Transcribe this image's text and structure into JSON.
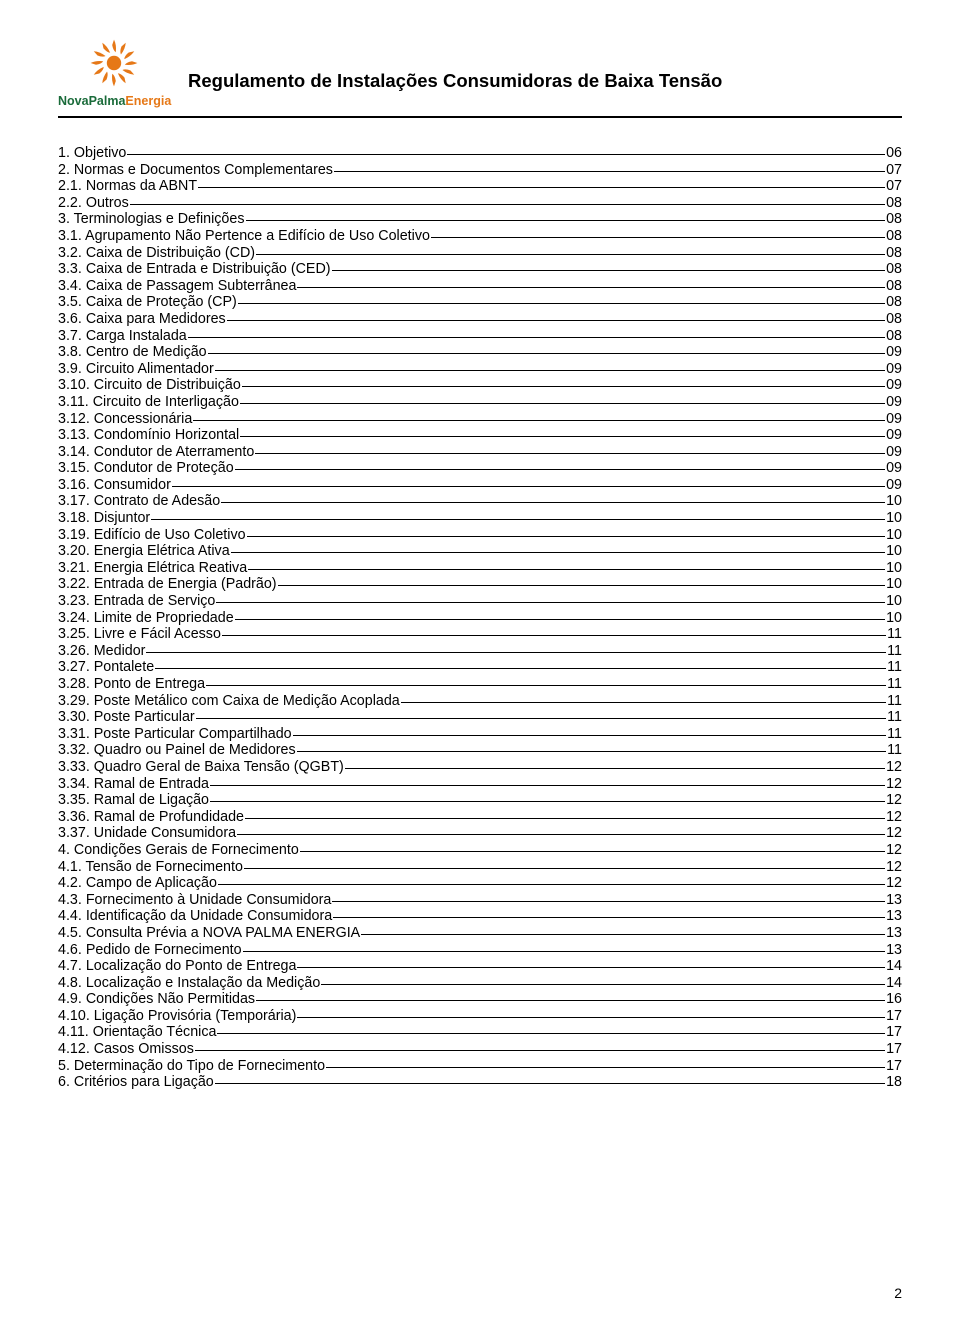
{
  "header": {
    "title": "Regulamento de Instalações Consumidoras de Baixa Tensão",
    "logo": {
      "brand_part1": "Nova",
      "brand_part2": "Palma",
      "brand_part3": "Energia",
      "sun_color": "#e67817",
      "green_color": "#1a6b3a"
    }
  },
  "page_number": "2",
  "toc": [
    {
      "label": "1. Objetivo",
      "page": "06"
    },
    {
      "label": "2. Normas e Documentos Complementares",
      "page": "07"
    },
    {
      "label": "2.1. Normas da ABNT",
      "page": "07"
    },
    {
      "label": "2.2. Outros",
      "page": "08"
    },
    {
      "label": "3. Terminologias e Definições",
      "page": "08"
    },
    {
      "label": "3.1. Agrupamento Não Pertence a Edifício de Uso Coletivo",
      "page": "08"
    },
    {
      "label": "3.2. Caixa de Distribuição (CD)",
      "page": "08"
    },
    {
      "label": "3.3. Caixa de Entrada e Distribuição (CED)",
      "page": "08"
    },
    {
      "label": "3.4. Caixa de Passagem Subterrânea",
      "page": "08"
    },
    {
      "label": "3.5. Caixa de Proteção (CP)",
      "page": "08"
    },
    {
      "label": "3.6. Caixa para Medidores",
      "page": "08"
    },
    {
      "label": "3.7. Carga Instalada",
      "page": "08"
    },
    {
      "label": "3.8. Centro de Medição",
      "page": "09"
    },
    {
      "label": "3.9. Circuito Alimentador",
      "page": "09"
    },
    {
      "label": "3.10. Circuito de Distribuição",
      "page": "09"
    },
    {
      "label": "3.11. Circuito de Interligação",
      "page": "09"
    },
    {
      "label": "3.12. Concessionária",
      "page": "09"
    },
    {
      "label": "3.13. Condomínio Horizontal",
      "page": "09"
    },
    {
      "label": "3.14. Condutor de Aterramento",
      "page": "09"
    },
    {
      "label": "3.15. Condutor de Proteção",
      "page": "09"
    },
    {
      "label": "3.16. Consumidor",
      "page": "09"
    },
    {
      "label": "3.17. Contrato de Adesão",
      "page": "10"
    },
    {
      "label": "3.18. Disjuntor",
      "page": "10"
    },
    {
      "label": "3.19. Edifício de Uso Coletivo",
      "page": "10"
    },
    {
      "label": "3.20. Energia Elétrica Ativa",
      "page": "10"
    },
    {
      "label": "3.21. Energia Elétrica Reativa",
      "page": "10"
    },
    {
      "label": "3.22. Entrada de Energia (Padrão)",
      "page": "10"
    },
    {
      "label": "3.23. Entrada de Serviço",
      "page": "10"
    },
    {
      "label": "3.24. Limite de Propriedade",
      "page": "10"
    },
    {
      "label": "3.25. Livre e Fácil Acesso",
      "page": "11"
    },
    {
      "label": "3.26. Medidor",
      "page": "11"
    },
    {
      "label": "3.27. Pontalete",
      "page": "11"
    },
    {
      "label": "3.28. Ponto de Entrega",
      "page": "11"
    },
    {
      "label": "3.29. Poste Metálico com Caixa de Medição Acoplada",
      "page": "11"
    },
    {
      "label": "3.30. Poste Particular",
      "page": "11"
    },
    {
      "label": "3.31. Poste Particular Compartilhado",
      "page": "11"
    },
    {
      "label": "3.32. Quadro ou Painel de Medidores",
      "page": "11"
    },
    {
      "label": "3.33. Quadro Geral de Baixa Tensão (QGBT)",
      "page": "12"
    },
    {
      "label": "3.34. Ramal de Entrada",
      "page": "12"
    },
    {
      "label": "3.35. Ramal de Ligação",
      "page": "12"
    },
    {
      "label": "3.36. Ramal de Profundidade",
      "page": "12"
    },
    {
      "label": "3.37. Unidade Consumidora",
      "page": "12"
    },
    {
      "label": "4. Condições Gerais de Fornecimento",
      "page": "12"
    },
    {
      "label": "4.1. Tensão de Fornecimento",
      "page": "12"
    },
    {
      "label": "4.2. Campo de Aplicação",
      "page": "12"
    },
    {
      "label": "4.3. Fornecimento à Unidade Consumidora",
      "page": "13"
    },
    {
      "label": "4.4. Identificação da Unidade Consumidora",
      "page": "13"
    },
    {
      "label": "4.5. Consulta Prévia a NOVA PALMA ENERGIA",
      "page": "13"
    },
    {
      "label": "4.6. Pedido de Fornecimento",
      "page": "13"
    },
    {
      "label": "4.7. Localização do Ponto de Entrega",
      "page": "14"
    },
    {
      "label": "4.8. Localização e Instalação da Medição",
      "page": "14"
    },
    {
      "label": "4.9. Condições Não Permitidas",
      "page": "16"
    },
    {
      "label": "4.10. Ligação Provisória (Temporária)",
      "page": "17"
    },
    {
      "label": "4.11. Orientação Técnica",
      "page": "17"
    },
    {
      "label": "4.12. Casos Omissos",
      "page": "17"
    },
    {
      "label": "5. Determinação do Tipo de Fornecimento",
      "page": "17"
    },
    {
      "label": "6. Critérios para Ligação",
      "page": "18"
    }
  ]
}
